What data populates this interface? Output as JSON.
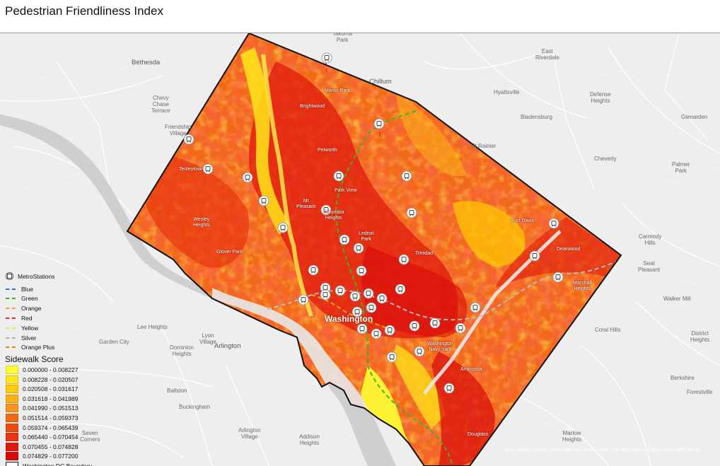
{
  "title": "Pedestrian Friendliness Index",
  "colors": {
    "basemap": "#eeeeee",
    "boundary": "#111111",
    "class_colors": [
      "#ffff33",
      "#ffe619",
      "#ffcc00",
      "#fbb115",
      "#f7931e",
      "#f26a14",
      "#ec4a10",
      "#e83410",
      "#e01a0e",
      "#d80a0a"
    ]
  },
  "legend": {
    "metro_title": "MetroStations",
    "lines": [
      {
        "label": "Blue",
        "color": "#2f6fd6"
      },
      {
        "label": "Green",
        "color": "#43b02a"
      },
      {
        "label": "Orange",
        "color": "#f5a623"
      },
      {
        "label": "Red",
        "color": "#e0282e"
      },
      {
        "label": "Yellow",
        "color": "#f5e642"
      },
      {
        "label": "Silver",
        "color": "#b0b0b0"
      },
      {
        "label": "Orange Plus",
        "color": "#e08a12"
      }
    ],
    "score_title": "Sidewalk Score",
    "classes": [
      {
        "label": "0.000000 - 0.008227"
      },
      {
        "label": "0.008228 - 0.020507"
      },
      {
        "label": "0.020508 - 0.031617"
      },
      {
        "label": "0.031618 - 0.041989"
      },
      {
        "label": "0.041990 - 0.051513"
      },
      {
        "label": "0.051514 - 0.059373"
      },
      {
        "label": "0.059374 - 0.065439"
      },
      {
        "label": "0.065440 - 0.070454"
      },
      {
        "label": "0.070455 - 0.074828"
      },
      {
        "label": "0.074829 - 0.077200"
      }
    ],
    "boundary_label": "Washington DC Boundary"
  },
  "places": [
    {
      "id": "takoma-park",
      "text": "Takoma\nPark"
    },
    {
      "id": "east-riverdale",
      "text": "East\nRiverdale"
    },
    {
      "id": "bethesda",
      "text": "Bethesda"
    },
    {
      "id": "chillum",
      "text": "Chillum"
    },
    {
      "id": "hyattsville",
      "text": "Hyattsville"
    },
    {
      "id": "defense-heights",
      "text": "Defense\nHeights"
    },
    {
      "id": "chevy-chase-terrace",
      "text": "Chevy\nChase\nTerrace"
    },
    {
      "id": "bladensburg",
      "text": "Bladensburg"
    },
    {
      "id": "glenarden",
      "text": "Glenarden"
    },
    {
      "id": "friendship-village",
      "text": "Friendship\nVillage"
    },
    {
      "id": "mt-rainier",
      "text": "Mt Rainier"
    },
    {
      "id": "cheverly",
      "text": "Cheverly"
    },
    {
      "id": "palmer-park",
      "text": "Palmer\nPark"
    },
    {
      "id": "carmody-hills",
      "text": "Carmody\nHills"
    },
    {
      "id": "seat-pleasant",
      "text": "Seat\nPleasant"
    },
    {
      "id": "walker-mill",
      "text": "Walker Mill"
    },
    {
      "id": "lee-heights",
      "text": "Lee Heights"
    },
    {
      "id": "lyon-village",
      "text": "Lyon\nVillage"
    },
    {
      "id": "garden-city",
      "text": "Garden City"
    },
    {
      "id": "dominion-heights",
      "text": "Dominion\nHeights"
    },
    {
      "id": "arlington",
      "text": "Arlington"
    },
    {
      "id": "coral-hills",
      "text": "Coral Hills"
    },
    {
      "id": "district-heights",
      "text": "District\nHeights"
    },
    {
      "id": "ballston",
      "text": "Ballston"
    },
    {
      "id": "berkshire",
      "text": "Berkshire"
    },
    {
      "id": "buckingham",
      "text": "Buckingham"
    },
    {
      "id": "forestville",
      "text": "Forestville"
    },
    {
      "id": "arlington-village",
      "text": "Arlington\nVillage"
    },
    {
      "id": "addison-heights",
      "text": "Addison\nHeights"
    },
    {
      "id": "seven-corners",
      "text": "Seven\nCorners"
    },
    {
      "id": "marlow-heights",
      "text": "Marlow\nHeights"
    }
  ],
  "hoods": [
    {
      "id": "washington",
      "text": "Washington"
    },
    {
      "id": "mt-pleasant",
      "text": "Mt\nPleasant"
    },
    {
      "id": "brightwood",
      "text": "Brightwood"
    },
    {
      "id": "manor-park",
      "text": "Manor Park"
    },
    {
      "id": "petworth",
      "text": "Petworth"
    },
    {
      "id": "tenleytown",
      "text": "Tenleytown"
    },
    {
      "id": "park-view",
      "text": "Park View"
    },
    {
      "id": "columbia-heights",
      "text": "Columbia\nHeights"
    },
    {
      "id": "wesley-heights",
      "text": "Wesley\nHeights"
    },
    {
      "id": "ledroit-park",
      "text": "Ledroit\nPark"
    },
    {
      "id": "glover-park",
      "text": "Glover Park"
    },
    {
      "id": "trinidad",
      "text": "Trinidad"
    },
    {
      "id": "deanwood",
      "text": "Deanwood"
    },
    {
      "id": "fort-davis",
      "text": "Fort Davis"
    },
    {
      "id": "capitol-hill",
      "text": "Washington\nNavy Yard"
    },
    {
      "id": "anacostia",
      "text": "Anacostia"
    },
    {
      "id": "congress-heights",
      "text": "Douglass"
    },
    {
      "id": "marshall-heights",
      "text": "Marshall\nHeights"
    }
  ],
  "stations": [
    {
      "id": "s1"
    },
    {
      "id": "s2"
    },
    {
      "id": "s3"
    },
    {
      "id": "s4"
    },
    {
      "id": "s5"
    },
    {
      "id": "s6"
    },
    {
      "id": "s7"
    },
    {
      "id": "s8"
    },
    {
      "id": "s9"
    },
    {
      "id": "s10"
    },
    {
      "id": "s11"
    },
    {
      "id": "s12"
    },
    {
      "id": "s13"
    },
    {
      "id": "s14"
    },
    {
      "id": "s15"
    },
    {
      "id": "s16"
    },
    {
      "id": "s17"
    },
    {
      "id": "s18"
    },
    {
      "id": "s19"
    },
    {
      "id": "s20"
    },
    {
      "id": "s21"
    },
    {
      "id": "s22"
    },
    {
      "id": "s23"
    },
    {
      "id": "s24"
    },
    {
      "id": "s25"
    },
    {
      "id": "s26"
    },
    {
      "id": "s27"
    },
    {
      "id": "s28"
    },
    {
      "id": "s29"
    },
    {
      "id": "s30"
    },
    {
      "id": "s31"
    },
    {
      "id": "s32"
    },
    {
      "id": "s33"
    },
    {
      "id": "s34"
    },
    {
      "id": "s35"
    },
    {
      "id": "s36"
    },
    {
      "id": "s37"
    },
    {
      "id": "s38"
    },
    {
      "id": "s39"
    }
  ],
  "attribution": "Esri, HERE, Garmin, SafeGraph, GeoTechnologies, Inc, METI/NASA, USGS, EPA, NPS, USDA"
}
